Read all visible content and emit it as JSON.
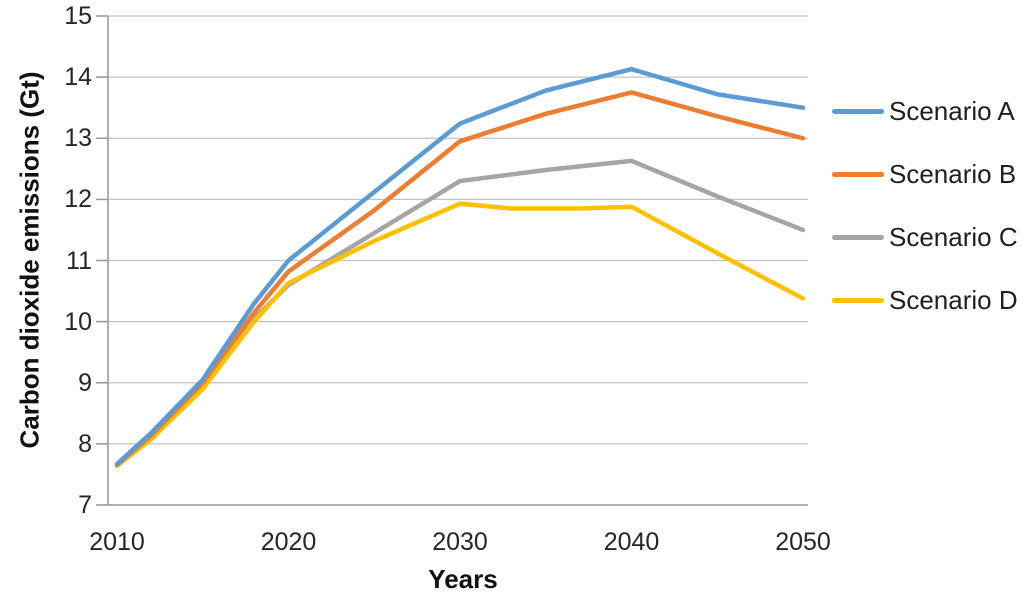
{
  "chart_data": {
    "type": "line",
    "title": "",
    "xlabel": "Years",
    "ylabel": "Carbon dioxide emissions (Gt)",
    "xlim": [
      2010,
      2050
    ],
    "ylim": [
      7,
      15
    ],
    "x_ticks": [
      2010,
      2020,
      2030,
      2040,
      2050
    ],
    "y_ticks": [
      7,
      8,
      9,
      10,
      11,
      12,
      13,
      14,
      15
    ],
    "grid": "horizontal",
    "legend_position": "right",
    "grid_color": "#c3c3c3",
    "axis_color": "#9b9b9b",
    "text_color": "#262626",
    "series": [
      {
        "name": "Scenario A",
        "color": "#5B9BD5",
        "points": [
          [
            2010,
            7.67
          ],
          [
            2012,
            8.18
          ],
          [
            2015,
            9.05
          ],
          [
            2018,
            10.3
          ],
          [
            2020,
            11.0
          ],
          [
            2025,
            12.12
          ],
          [
            2030,
            13.24
          ],
          [
            2035,
            13.78
          ],
          [
            2040,
            14.13
          ],
          [
            2045,
            13.72
          ],
          [
            2050,
            13.5
          ]
        ]
      },
      {
        "name": "Scenario B",
        "color": "#ED7D31",
        "points": [
          [
            2010,
            7.66
          ],
          [
            2012,
            8.14
          ],
          [
            2015,
            9.0
          ],
          [
            2018,
            10.15
          ],
          [
            2020,
            10.82
          ],
          [
            2025,
            11.82
          ],
          [
            2030,
            12.95
          ],
          [
            2035,
            13.4
          ],
          [
            2040,
            13.75
          ],
          [
            2045,
            13.36
          ],
          [
            2050,
            13.0
          ]
        ]
      },
      {
        "name": "Scenario C",
        "color": "#A5A5A5",
        "points": [
          [
            2010,
            7.65
          ],
          [
            2012,
            8.1
          ],
          [
            2015,
            8.95
          ],
          [
            2018,
            10.05
          ],
          [
            2020,
            10.6
          ],
          [
            2025,
            11.45
          ],
          [
            2030,
            12.3
          ],
          [
            2035,
            12.48
          ],
          [
            2040,
            12.63
          ],
          [
            2045,
            12.05
          ],
          [
            2050,
            11.5
          ]
        ]
      },
      {
        "name": "Scenario D",
        "color": "#FFC000",
        "points": [
          [
            2010,
            7.64
          ],
          [
            2012,
            8.08
          ],
          [
            2015,
            8.9
          ],
          [
            2018,
            10.0
          ],
          [
            2020,
            10.63
          ],
          [
            2025,
            11.32
          ],
          [
            2030,
            11.93
          ],
          [
            2033,
            11.85
          ],
          [
            2037,
            11.85
          ],
          [
            2040,
            11.88
          ],
          [
            2045,
            11.12
          ],
          [
            2050,
            10.38
          ]
        ]
      }
    ],
    "draw_order": [
      "Scenario C",
      "Scenario D",
      "Scenario B",
      "Scenario A"
    ]
  }
}
